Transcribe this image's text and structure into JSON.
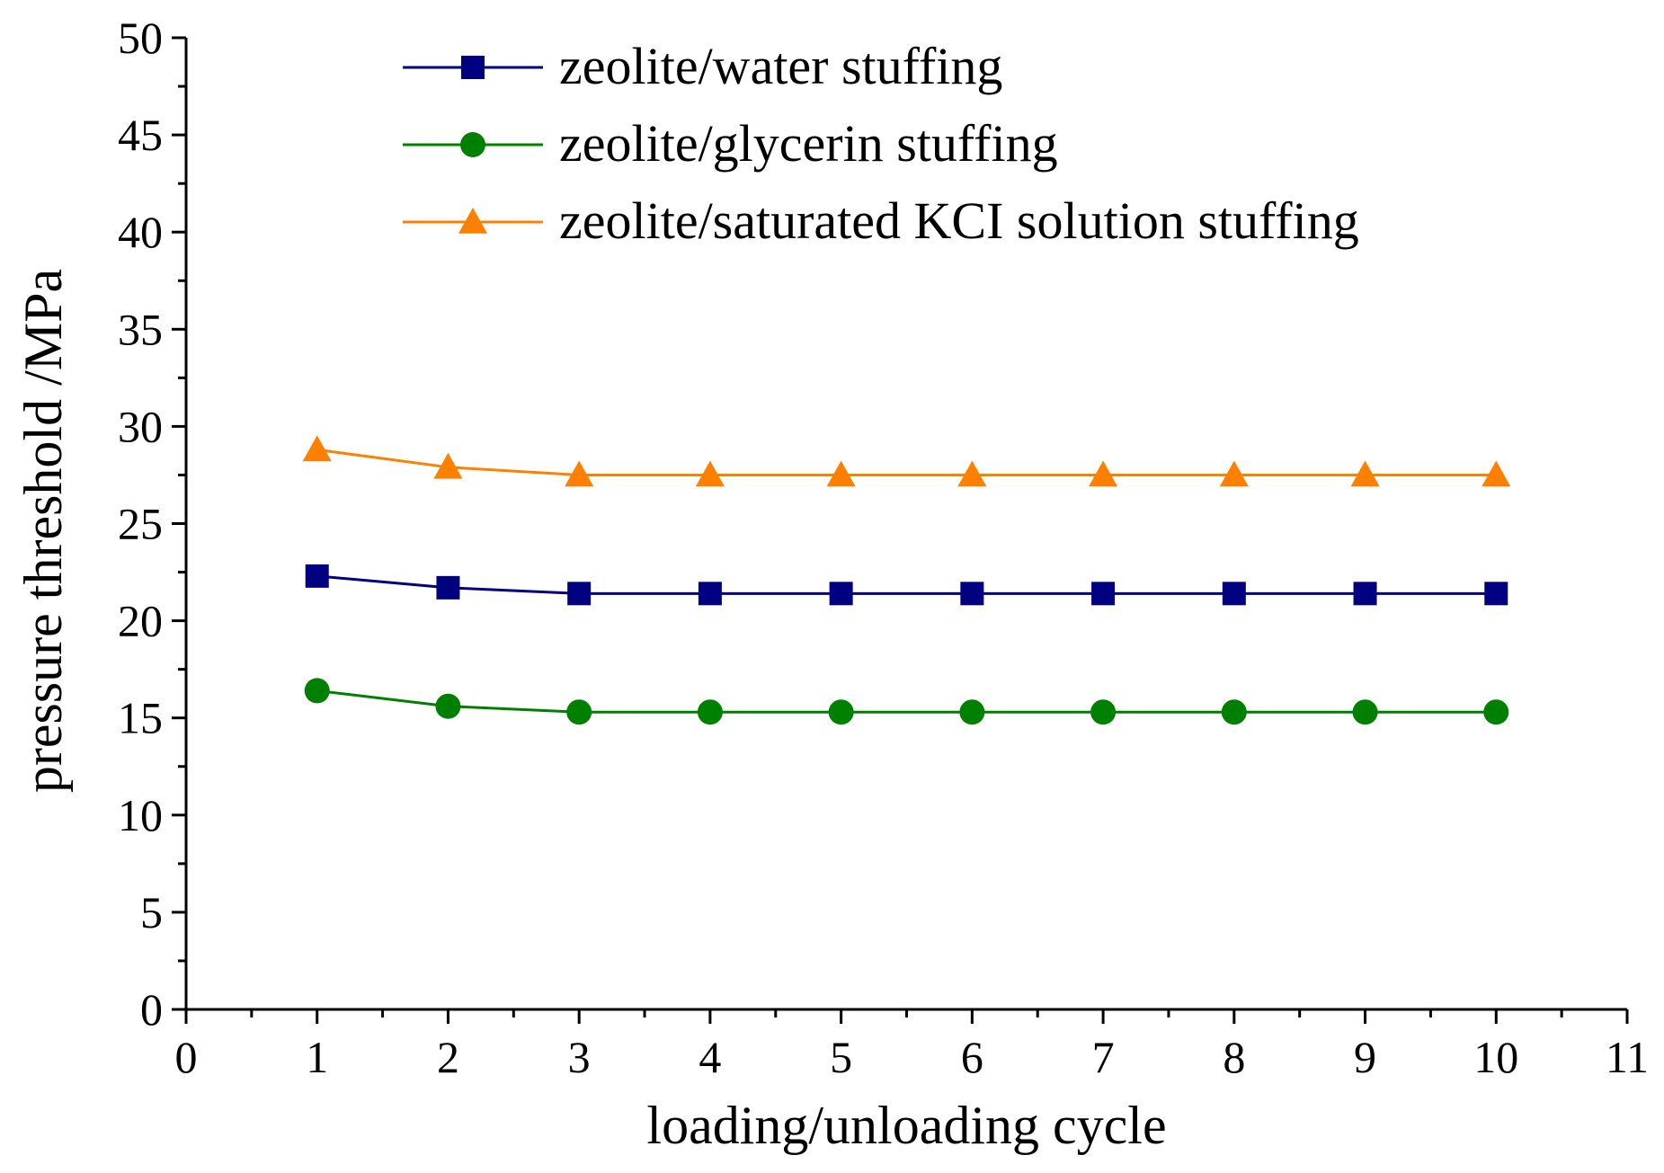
{
  "chart_data": {
    "type": "line",
    "title": "",
    "xlabel": "loading/unloading cycle",
    "ylabel": "pressure threshold /MPa",
    "xlim": [
      0,
      11
    ],
    "ylim": [
      0,
      50
    ],
    "xticks": [
      "0",
      "1",
      "2",
      "3",
      "4",
      "5",
      "6",
      "7",
      "8",
      "9",
      "10",
      "11"
    ],
    "yticks": [
      "0",
      "5",
      "10",
      "15",
      "20",
      "25",
      "30",
      "35",
      "40",
      "45",
      "50"
    ],
    "grid": false,
    "legend_position": "top",
    "x": [
      1,
      2,
      3,
      4,
      5,
      6,
      7,
      8,
      9,
      10
    ],
    "series": [
      {
        "name": "zeolite/water stuffing",
        "marker": "square",
        "color": "#000080",
        "values": [
          22.3,
          21.7,
          21.4,
          21.4,
          21.4,
          21.4,
          21.4,
          21.4,
          21.4,
          21.4
        ]
      },
      {
        "name": "zeolite/glycerin stuffing",
        "marker": "circle",
        "color": "#008000",
        "values": [
          16.4,
          15.6,
          15.3,
          15.3,
          15.3,
          15.3,
          15.3,
          15.3,
          15.3,
          15.3
        ]
      },
      {
        "name": "zeolite/saturated KCI solution stuffing",
        "marker": "triangle",
        "color": "#FF8000",
        "values": [
          28.8,
          27.9,
          27.5,
          27.5,
          27.5,
          27.5,
          27.5,
          27.5,
          27.5,
          27.5
        ]
      }
    ]
  }
}
